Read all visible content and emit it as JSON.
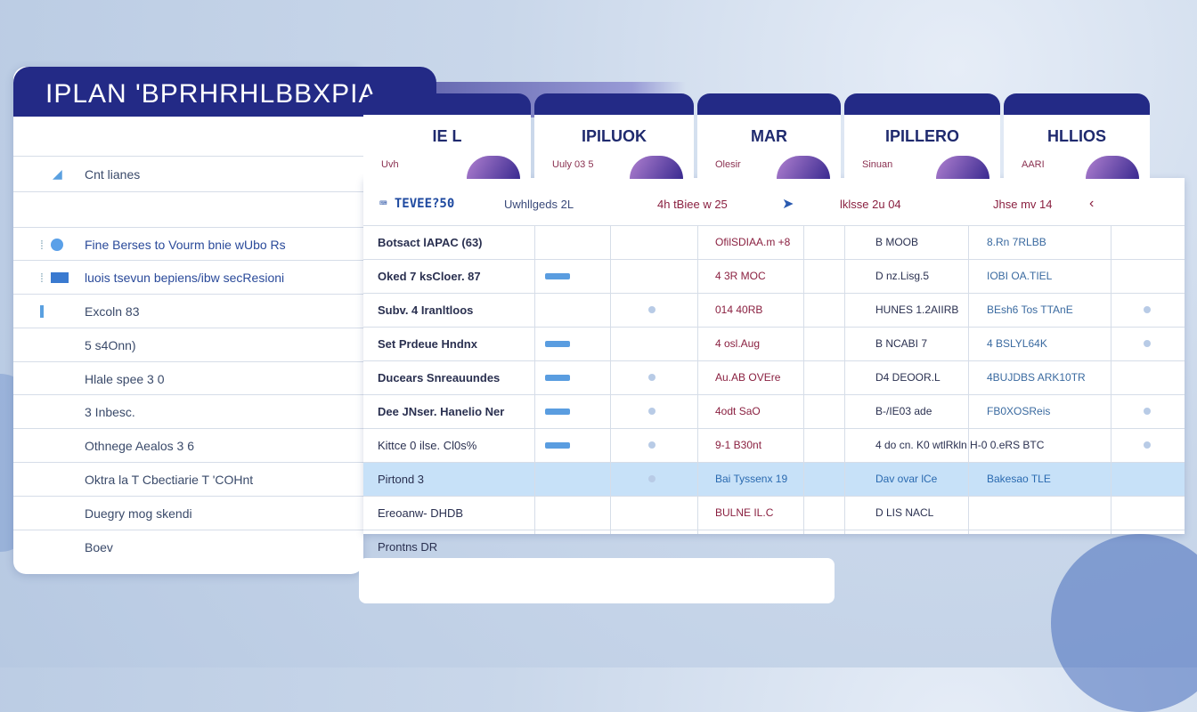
{
  "app_title": "IPLAN 'BPRHRHLBBXPIA",
  "sidebar": {
    "heading": "Cnt lianes",
    "items": [
      {
        "label": "Fine Berses to Vourm bnie wUbo Rs",
        "icon": "circle-icon"
      },
      {
        "label": "luois tsevun bepiens/ibw secResioni",
        "icon": "card-icon"
      },
      {
        "label": "Excoln 83",
        "icon": "bar-icon"
      },
      {
        "label": "5 s4Onn)",
        "icon": ""
      },
      {
        "label": "Hlale spee 3 0",
        "icon": ""
      },
      {
        "label": "3 Inbesc.",
        "icon": ""
      },
      {
        "label": "Othnege Aealos 3 6",
        "icon": ""
      },
      {
        "label": "Oktra la T Cbectiarie T 'COHnt",
        "icon": ""
      },
      {
        "label": "Duegry mog skendi",
        "icon": ""
      },
      {
        "label": "Boev",
        "icon": ""
      }
    ]
  },
  "tabs": [
    {
      "title": "IE L",
      "sub": "Uvh"
    },
    {
      "title": "IPILUOK",
      "sub": "Uuly 03 5"
    },
    {
      "title": "MAR",
      "sub": "Olesir"
    },
    {
      "title": "IPILLERO",
      "sub": "Sinuan"
    },
    {
      "title": "HLLIOS",
      "sub": "AARI"
    }
  ],
  "date_row": {
    "tag": "TEVEE?50",
    "items": [
      "Uwhllgeds 2L",
      "4h tBiee w 25",
      "lklsse 2u 04",
      "Jhse mv 14"
    ]
  },
  "rows": [
    {
      "name": "Botsact lAPAC (63)",
      "chip": false,
      "dot": false,
      "c4": "OfilSDIAA.m +8",
      "c5": "B MOOB",
      "c6": "8.Rn 7RLBB",
      "c7": false
    },
    {
      "name": "Oked 7 ksCloer. 87",
      "chip": true,
      "dot": false,
      "c4": "4 3R MOC",
      "c5": "D nz.Lisg.5",
      "c6": "IOBI OA.TIEL",
      "c7": false
    },
    {
      "name": "Subv. 4 Iranltloos",
      "chip": false,
      "dot": true,
      "c4": "014 40RB",
      "c5": "HUNES 1.2AIIRB",
      "c6": "BEsh6 Tos TTAnE",
      "c7": true
    },
    {
      "name": "Set Prdeue Hndnx",
      "chip": true,
      "dot": false,
      "c4": "4 osl.Aug",
      "c5": "B NCABI 7",
      "c6": "4 BSLYL64K",
      "c7": true
    },
    {
      "name": "Ducears Snreauundes",
      "chip": true,
      "dot": true,
      "c4": "Au.AB OVEre",
      "c5": "D4 DEOOR.L",
      "c6": "4BUJDBS ARK10TR",
      "c7": false
    },
    {
      "name": "Dee JNser. Hanelio Ner",
      "chip": true,
      "dot": true,
      "c4": "4odt SaO",
      "c5": "B-/IE03 ade",
      "c6": "FB0XOSReis",
      "c7": true
    },
    {
      "name": "Kittce 0 ilse. Cl0s%",
      "chip": true,
      "dot": true,
      "c4": "9-1 B30nt",
      "c5": "4 do cn. K0 wtlRkln H-0 0.eRS BTC",
      "c6": "",
      "c7": true
    },
    {
      "name": "Pirtond 3",
      "chip": false,
      "dot": true,
      "c4": "Bai Tyssenx 19",
      "c5": "Dav ovar lCe",
      "c6": "Bakesao TLE",
      "c7": false
    },
    {
      "name": "Ereoanw- DHDB",
      "chip": false,
      "dot": false,
      "c4": "BULNE IL.C",
      "c5": "D LIS NACL",
      "c6": "",
      "c7": false
    },
    {
      "name": "Prontns DR",
      "chip": false,
      "dot": false,
      "c4": "",
      "c5": "",
      "c6": "",
      "c7": false
    }
  ],
  "colors": {
    "navy": "#232a86",
    "accent": "#5a9de0",
    "highlight": "#b4d7f5"
  }
}
